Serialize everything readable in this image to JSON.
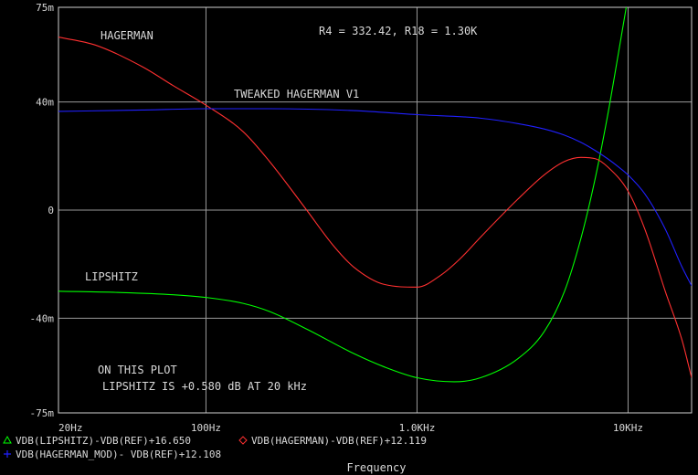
{
  "chart_data": {
    "type": "line",
    "xscale": "log",
    "xlim": [
      20,
      20000
    ],
    "ylim": [
      -75,
      75
    ],
    "yunit": "m",
    "grid": true,
    "xlabel": "Frequency",
    "x_ticks": [
      {
        "value": 20,
        "label": "20Hz"
      },
      {
        "value": 100,
        "label": "100Hz"
      },
      {
        "value": 1000,
        "label": "1.0KHz"
      },
      {
        "value": 10000,
        "label": "10KHz"
      }
    ],
    "y_ticks": [
      {
        "value": 75,
        "label": "75m"
      },
      {
        "value": 40,
        "label": "40m"
      },
      {
        "value": 0,
        "label": "0"
      },
      {
        "value": -40,
        "label": "-40m"
      },
      {
        "value": -75,
        "label": "-75m"
      }
    ],
    "annotations": {
      "params": "R4 = 332.42, R18 = 1.30K",
      "hagerman": "HAGERMAN",
      "tweaked": "TWEAKED HAGERMAN V1",
      "lipshitz": "LIPSHITZ",
      "note1": "ON THIS PLOT",
      "note2": "LIPSHITZ  IS +0.580 dB AT 20 kHz"
    },
    "series": [
      {
        "name": "VDB(LIPSHITZ)-VDB(REF)+16.650",
        "color": "#00ff00",
        "marker": "triangle",
        "x": [
          20,
          40,
          70,
          100,
          150,
          200,
          300,
          500,
          700,
          1000,
          1500,
          2000,
          3000,
          4000,
          5000,
          6000,
          7000,
          8000,
          9000,
          9800
        ],
        "y": [
          -30,
          -30.5,
          -31.3,
          -32.3,
          -34.5,
          -37.5,
          -44,
          -53,
          -58,
          -62,
          -63.5,
          -62,
          -55,
          -45,
          -30,
          -10,
          12,
          35,
          58,
          75
        ]
      },
      {
        "name": "VDB(HAGERMAN)-VDB(REF)+12.119",
        "color": "#ff3030",
        "marker": "diamond",
        "x": [
          20,
          30,
          50,
          70,
          100,
          150,
          200,
          300,
          400,
          500,
          700,
          1000,
          1300,
          1600,
          2000,
          3000,
          4000,
          5000,
          6000,
          7000,
          8000,
          10000,
          12000,
          15000,
          18000,
          20000
        ],
        "y": [
          64,
          61,
          53,
          46,
          38.8,
          29,
          18,
          0,
          -13,
          -21,
          -27.5,
          -28.5,
          -24,
          -18,
          -10,
          4,
          13,
          18,
          19.5,
          19,
          16,
          7,
          -7,
          -30,
          -48,
          -62
        ]
      },
      {
        "name": "VDB(HAGERMAN_MOD)- VDB(REF)+12.108",
        "color": "#2020ff",
        "marker": "plus",
        "x": [
          20,
          50,
          100,
          200,
          500,
          1000,
          2000,
          3000,
          4000,
          5000,
          6000,
          7000,
          8000,
          9000,
          10000,
          12000,
          15000,
          18000,
          20000
        ],
        "y": [
          36.5,
          37,
          37.5,
          37.5,
          36.8,
          35.3,
          34,
          32,
          30,
          27.7,
          25,
          22,
          19,
          16,
          13,
          6,
          -7,
          -21,
          -28
        ]
      }
    ]
  }
}
